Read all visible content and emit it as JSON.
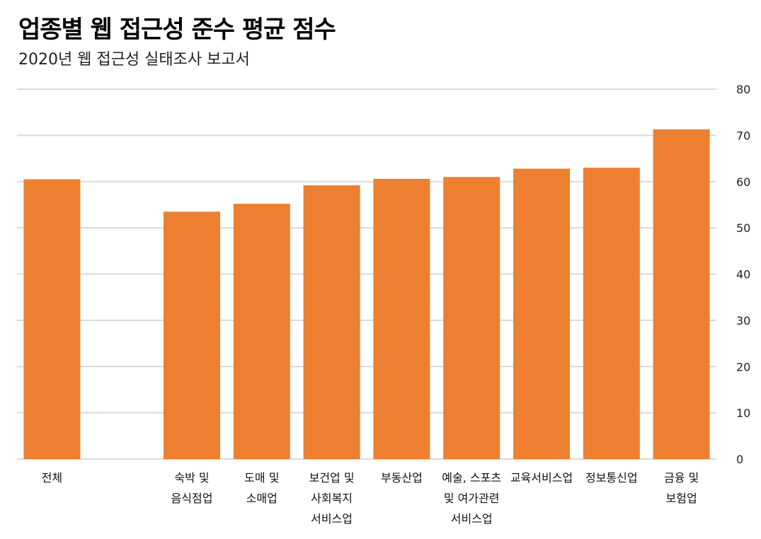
{
  "chart_data": {
    "type": "bar",
    "title": "업종별 웹 접근성 준수 평균 점수",
    "subtitle": "2020년 웹 접근성 실태조사 보고서",
    "categories": [
      [
        "전체"
      ],
      [
        ""
      ],
      [
        "숙박 및",
        "음식점업"
      ],
      [
        "도매 및",
        "소매업"
      ],
      [
        "보건업 및",
        "사회복지",
        "서비스업"
      ],
      [
        "부동산업"
      ],
      [
        "예술, 스포츠",
        "및 여가관련",
        "서비스업"
      ],
      [
        "교육서비스업"
      ],
      [
        "정보통신업"
      ],
      [
        "금융 및",
        "보험업"
      ]
    ],
    "values": [
      60.5,
      null,
      53.5,
      55.2,
      59.2,
      60.6,
      61.0,
      62.8,
      63.0,
      71.3
    ],
    "ylim": [
      0,
      80
    ],
    "yticks": [
      0,
      10,
      20,
      30,
      40,
      50,
      60,
      70,
      80
    ],
    "y_axis_position": "right",
    "grid": true,
    "colors": {
      "bar": "#ed7f31",
      "grid": "#d9d9d9"
    }
  }
}
